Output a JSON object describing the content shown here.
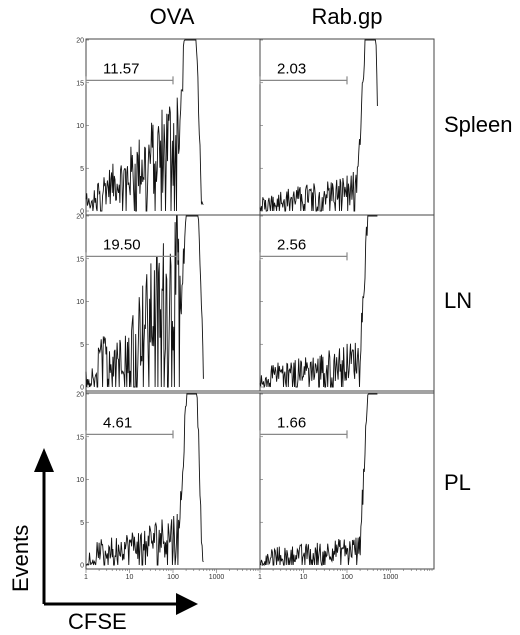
{
  "chart_data": {
    "type": "histogram-grid",
    "columns": [
      "OVA",
      "Rab.gp"
    ],
    "rows": [
      "Spleen",
      "LN",
      "PL"
    ],
    "xlabel": "CFSE",
    "ylabel": "Events",
    "xscale": "log",
    "xlim": [
      1,
      10000
    ],
    "ylim": [
      0,
      20
    ],
    "x_ticks": [
      "1",
      "10",
      "100",
      "1000"
    ],
    "y_ticks": [
      "0",
      "5",
      "10",
      "15",
      "20"
    ],
    "panels": [
      {
        "row": "Spleen",
        "column": "OVA",
        "gate_value": "11.57",
        "gate": [
          1,
          100
        ],
        "peak": 250
      },
      {
        "row": "Spleen",
        "column": "Rab.gp",
        "gate_value": "2.03",
        "gate": [
          1,
          100
        ],
        "peak": 330
      },
      {
        "row": "LN",
        "column": "OVA",
        "gate_value": "19.50",
        "gate": [
          1,
          130
        ],
        "peak": 280
      },
      {
        "row": "LN",
        "column": "Rab.gp",
        "gate_value": "2.56",
        "gate": [
          1,
          100
        ],
        "peak": 370
      },
      {
        "row": "PL",
        "column": "OVA",
        "gate_value": "4.61",
        "gate": [
          1,
          100
        ],
        "peak": 260
      },
      {
        "row": "PL",
        "column": "Rab.gp",
        "gate_value": "1.66",
        "gate": [
          1,
          100
        ],
        "peak": 380
      }
    ]
  }
}
